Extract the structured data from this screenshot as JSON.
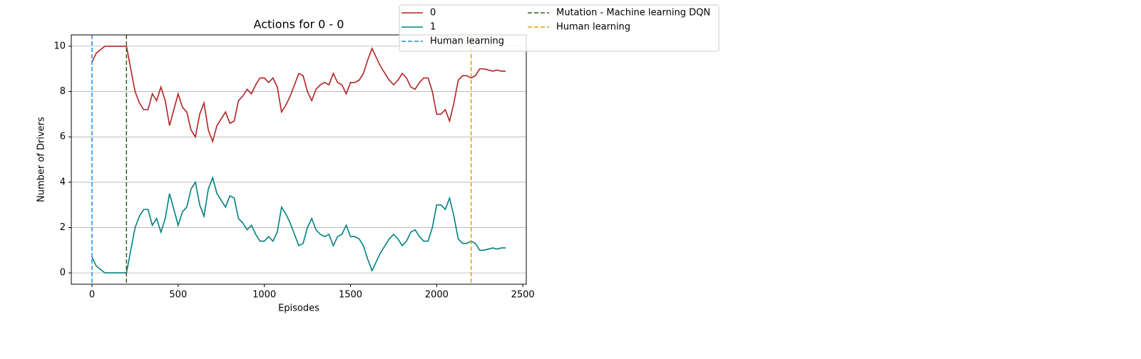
{
  "chart_data": {
    "type": "line",
    "title": "Actions for 0 - 0",
    "x_label": "Episodes",
    "y_label": "Number of Drivers",
    "x": [
      0,
      25,
      50,
      75,
      100,
      125,
      150,
      175,
      200,
      225,
      250,
      275,
      300,
      325,
      350,
      375,
      400,
      425,
      450,
      475,
      500,
      525,
      550,
      575,
      600,
      625,
      650,
      675,
      700,
      725,
      750,
      775,
      800,
      825,
      850,
      875,
      900,
      925,
      950,
      975,
      1000,
      1025,
      1050,
      1075,
      1100,
      1125,
      1150,
      1175,
      1200,
      1225,
      1250,
      1275,
      1300,
      1325,
      1350,
      1375,
      1400,
      1425,
      1450,
      1475,
      1500,
      1525,
      1550,
      1575,
      1600,
      1625,
      1650,
      1675,
      1700,
      1725,
      1750,
      1775,
      1800,
      1825,
      1850,
      1875,
      1900,
      1925,
      1950,
      1975,
      2000,
      2025,
      2050,
      2075,
      2100,
      2125,
      2150,
      2175,
      2200,
      2225,
      2250,
      2275,
      2300,
      2325,
      2350,
      2375,
      2400
    ],
    "series": [
      {
        "name": "0",
        "color": "#b22222",
        "values": [
          9.3,
          9.7,
          9.85,
          10,
          10,
          10,
          10,
          10,
          10,
          9.0,
          8.0,
          7.5,
          7.2,
          7.2,
          7.9,
          7.6,
          8.2,
          7.6,
          6.5,
          7.2,
          7.9,
          7.3,
          7.1,
          6.3,
          6.0,
          7.0,
          7.5,
          6.3,
          5.8,
          6.5,
          6.8,
          7.1,
          6.6,
          6.7,
          7.6,
          7.8,
          8.1,
          7.9,
          8.3,
          8.6,
          8.6,
          8.4,
          8.6,
          8.2,
          7.1,
          7.4,
          7.8,
          8.3,
          8.8,
          8.7,
          8.0,
          7.6,
          8.1,
          8.3,
          8.4,
          8.3,
          8.8,
          8.4,
          8.3,
          7.9,
          8.4,
          8.4,
          8.5,
          8.8,
          9.4,
          9.9,
          9.5,
          9.1,
          8.8,
          8.5,
          8.3,
          8.5,
          8.8,
          8.6,
          8.2,
          8.1,
          8.4,
          8.6,
          8.6,
          8.0,
          7.0,
          7.0,
          7.2,
          6.7,
          7.5,
          8.5,
          8.7,
          8.7,
          8.6,
          8.7,
          9.0,
          9.0,
          8.95,
          8.9,
          8.95,
          8.9,
          8.9
        ]
      },
      {
        "name": "1",
        "color": "#008080",
        "values": [
          0.7,
          0.3,
          0.15,
          0,
          0,
          0,
          0,
          0,
          0,
          1.0,
          2.0,
          2.5,
          2.8,
          2.8,
          2.1,
          2.4,
          1.8,
          2.4,
          3.5,
          2.8,
          2.1,
          2.7,
          2.9,
          3.7,
          4.0,
          3.0,
          2.5,
          3.7,
          4.2,
          3.5,
          3.2,
          2.9,
          3.4,
          3.3,
          2.4,
          2.2,
          1.9,
          2.1,
          1.7,
          1.4,
          1.4,
          1.6,
          1.4,
          1.8,
          2.9,
          2.6,
          2.2,
          1.7,
          1.2,
          1.3,
          2.0,
          2.4,
          1.9,
          1.7,
          1.6,
          1.7,
          1.2,
          1.6,
          1.7,
          2.1,
          1.6,
          1.6,
          1.5,
          1.2,
          0.6,
          0.1,
          0.5,
          0.9,
          1.2,
          1.5,
          1.7,
          1.5,
          1.2,
          1.4,
          1.8,
          1.9,
          1.6,
          1.4,
          1.4,
          2.0,
          3.0,
          3.0,
          2.8,
          3.3,
          2.5,
          1.5,
          1.3,
          1.3,
          1.4,
          1.3,
          1.0,
          1.0,
          1.05,
          1.1,
          1.05,
          1.1,
          1.1
        ]
      }
    ],
    "vlines": [
      {
        "name": "Human learning",
        "x": 0,
        "color": "#1e88e5"
      },
      {
        "name": "Mutation - Machine learning DQN",
        "x": 200,
        "color": "#3a5a1e"
      },
      {
        "name": "Human learning",
        "x": 2200,
        "color": "#e69f00"
      }
    ],
    "xlim": [
      -120,
      2520
    ],
    "ylim": [
      -0.5,
      10.5
    ],
    "xticks": [
      0,
      500,
      1000,
      1500,
      2000,
      2500
    ],
    "yticks": [
      0,
      2,
      4,
      6,
      8,
      10
    ],
    "grid": "y",
    "legend_columns": 2
  }
}
